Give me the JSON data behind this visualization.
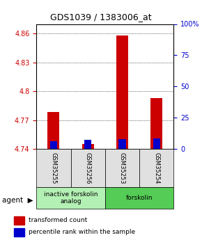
{
  "title": "GDS1039 / 1383006_at",
  "samples": [
    "GSM35255",
    "GSM35256",
    "GSM35253",
    "GSM35254"
  ],
  "groups": [
    "inactive forskolin\nanalog",
    "inactive forskolin\nanalog",
    "forskolin",
    "forskolin"
  ],
  "group_colors": [
    "#ccffcc",
    "#ccffcc",
    "#66dd66",
    "#66dd66"
  ],
  "ylim_left": [
    4.74,
    4.87
  ],
  "yticks_left": [
    4.74,
    4.77,
    4.8,
    4.83,
    4.86
  ],
  "ylim_right": [
    0,
    100
  ],
  "yticks_right": [
    0,
    25,
    50,
    75,
    100
  ],
  "ytick_labels_right": [
    "0",
    "25",
    "50",
    "75",
    "100%"
  ],
  "red_values": [
    4.778,
    4.745,
    4.858,
    4.793
  ],
  "blue_values": [
    4.748,
    4.749,
    4.75,
    4.751
  ],
  "base_value": 4.74,
  "bar_width": 0.35,
  "red_color": "#cc0000",
  "blue_color": "#0000cc",
  "grid_color": "#000000",
  "bg_plot": "#ffffff",
  "bg_label": "#e0e0e0",
  "left_tick_color": "#cc0000",
  "right_tick_color": "#0000cc",
  "agent_label": "agent",
  "legend_red": "transformed count",
  "legend_blue": "percentile rank within the sample"
}
